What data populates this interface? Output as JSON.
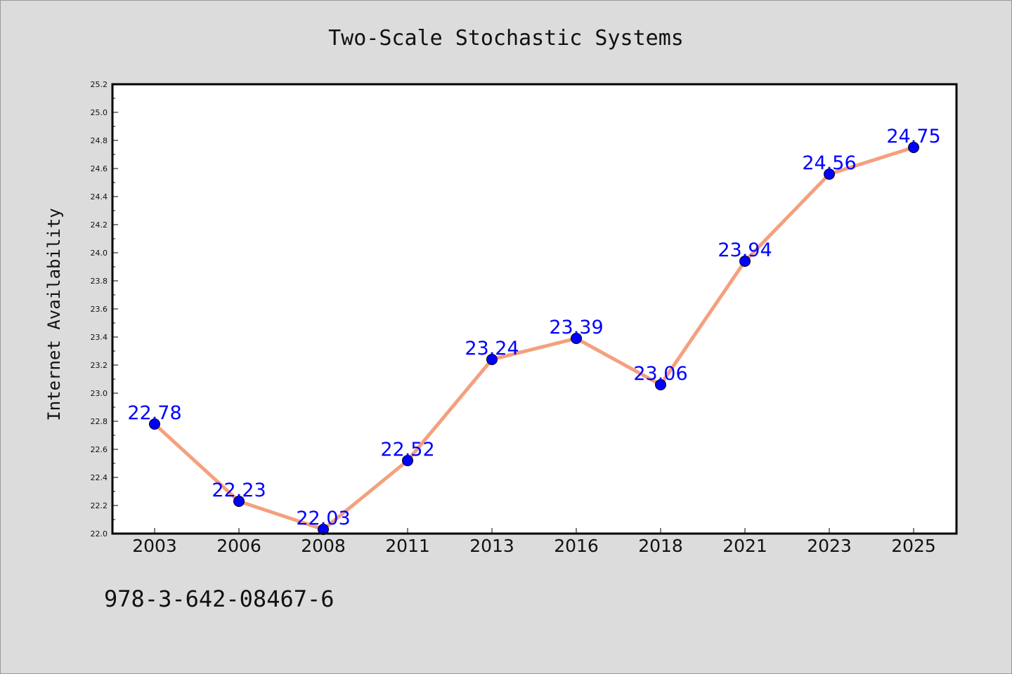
{
  "chart_data": {
    "type": "line",
    "title": "Two-Scale Stochastic Systems",
    "xlabel": "",
    "ylabel": "Internet Availability",
    "categories": [
      "2003",
      "2006",
      "2008",
      "2011",
      "2013",
      "2016",
      "2018",
      "2021",
      "2023",
      "2025"
    ],
    "series": [
      {
        "values": [
          22.78,
          22.23,
          22.03,
          22.52,
          23.24,
          23.39,
          23.06,
          23.94,
          24.56,
          24.75
        ],
        "data_labels": [
          "22.78",
          "22.23",
          "22.03",
          "22.52",
          "23.24",
          "23.39",
          "23.06",
          "23.94",
          "24.56",
          "24.75"
        ]
      }
    ],
    "ylim": [
      22.0,
      25.2
    ],
    "y_ticks": [
      "22.0",
      "22.2",
      "22.4",
      "22.6",
      "22.8",
      "23.0",
      "23.2",
      "23.4",
      "23.6",
      "23.8",
      "24.0",
      "24.2",
      "24.4",
      "24.6",
      "24.8",
      "25.0",
      "25.2"
    ],
    "grid": false,
    "legend": "none",
    "colors": {
      "line": "#f4a07e",
      "marker": "#0000ff",
      "data_label": "#0000ff",
      "plot_background": "#ffffff",
      "figure_background": "#dcdcdc"
    }
  },
  "footnote": "978-3-642-08467-6"
}
